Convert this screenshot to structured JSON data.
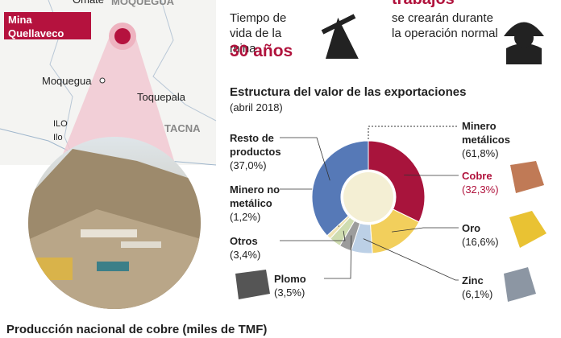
{
  "map": {
    "labels": [
      "Omate",
      "MOQUEGUA",
      "Mina Quellaveco",
      "Moquegua",
      "Toquepala",
      "ILO",
      "Ilo",
      "TACNA"
    ]
  },
  "stats": {
    "life_label": "Tiempo de vida de la mina",
    "life_value": "30 años",
    "jobs_title": "trabajos",
    "jobs_label": "se crearán durante la operación normal"
  },
  "chart_data": {
    "type": "donut",
    "title": "Estructura del valor de las exportaciones",
    "subtitle": "(abril 2018)",
    "categories": [
      "Cobre",
      "Oro",
      "Zinc",
      "Plomo",
      "Otros",
      "Minero no metálico",
      "Resto de productos"
    ],
    "values": [
      32.3,
      16.6,
      6.1,
      3.5,
      3.4,
      1.2,
      37.0
    ],
    "value_labels": [
      "(32,3%)",
      "(16,6%)",
      "(6,1%)",
      "(3,5%)",
      "(3,4%)",
      "(1,2%)",
      "(37,0%)"
    ],
    "colors": [
      "#a8143c",
      "#f2cf5c",
      "#bcd0e6",
      "#9c9c9c",
      "#cfdcb0",
      "#efe3b4",
      "#5679b7"
    ],
    "group": {
      "name": "Minero metálicos",
      "value": 61.8,
      "value_label": "(61,8%)"
    }
  },
  "footer_title": "Producción nacional de cobre (miles de TMF)"
}
